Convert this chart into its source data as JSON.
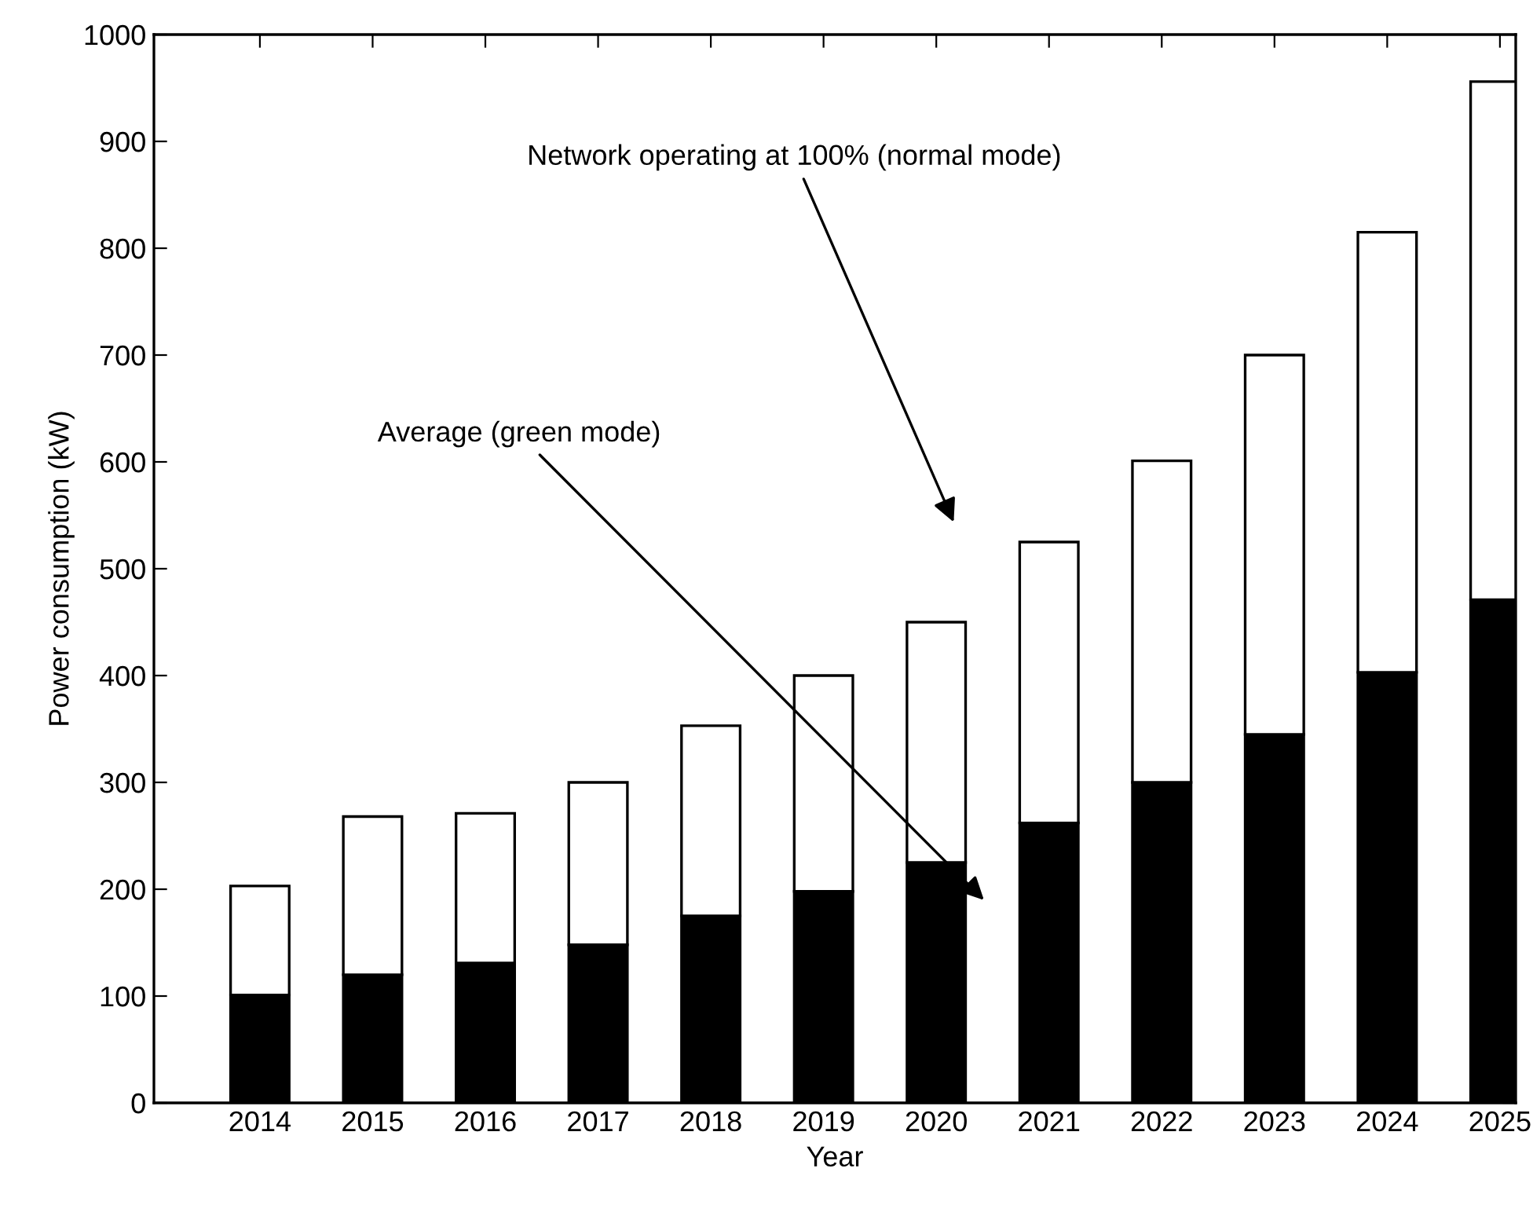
{
  "chart_data": {
    "type": "bar",
    "xlabel": "Year",
    "ylabel": "Power consumption (kW)",
    "categories": [
      "2014",
      "2015",
      "2016",
      "2017",
      "2018",
      "2019",
      "2020",
      "2021",
      "2022",
      "2023",
      "2024",
      "2025"
    ],
    "stacked": true,
    "series": [
      {
        "color": "#000000",
        "values": [
          101,
          120,
          131,
          148,
          175,
          198,
          225,
          262,
          300,
          345,
          403,
          471
        ]
      },
      {
        "color": "#ffffff",
        "values": [
          102,
          148,
          140,
          152,
          178,
          202,
          225,
          263,
          301,
          355,
          412,
          485
        ]
      }
    ],
    "ylim": [
      0,
      1000
    ],
    "yticks": [
      0,
      100,
      200,
      300,
      400,
      500,
      600,
      700,
      800,
      900,
      1000
    ],
    "annotations": [
      "Network operating at 100% (normal mode)",
      "Average (green mode)"
    ],
    "grid": false,
    "legend": false
  }
}
